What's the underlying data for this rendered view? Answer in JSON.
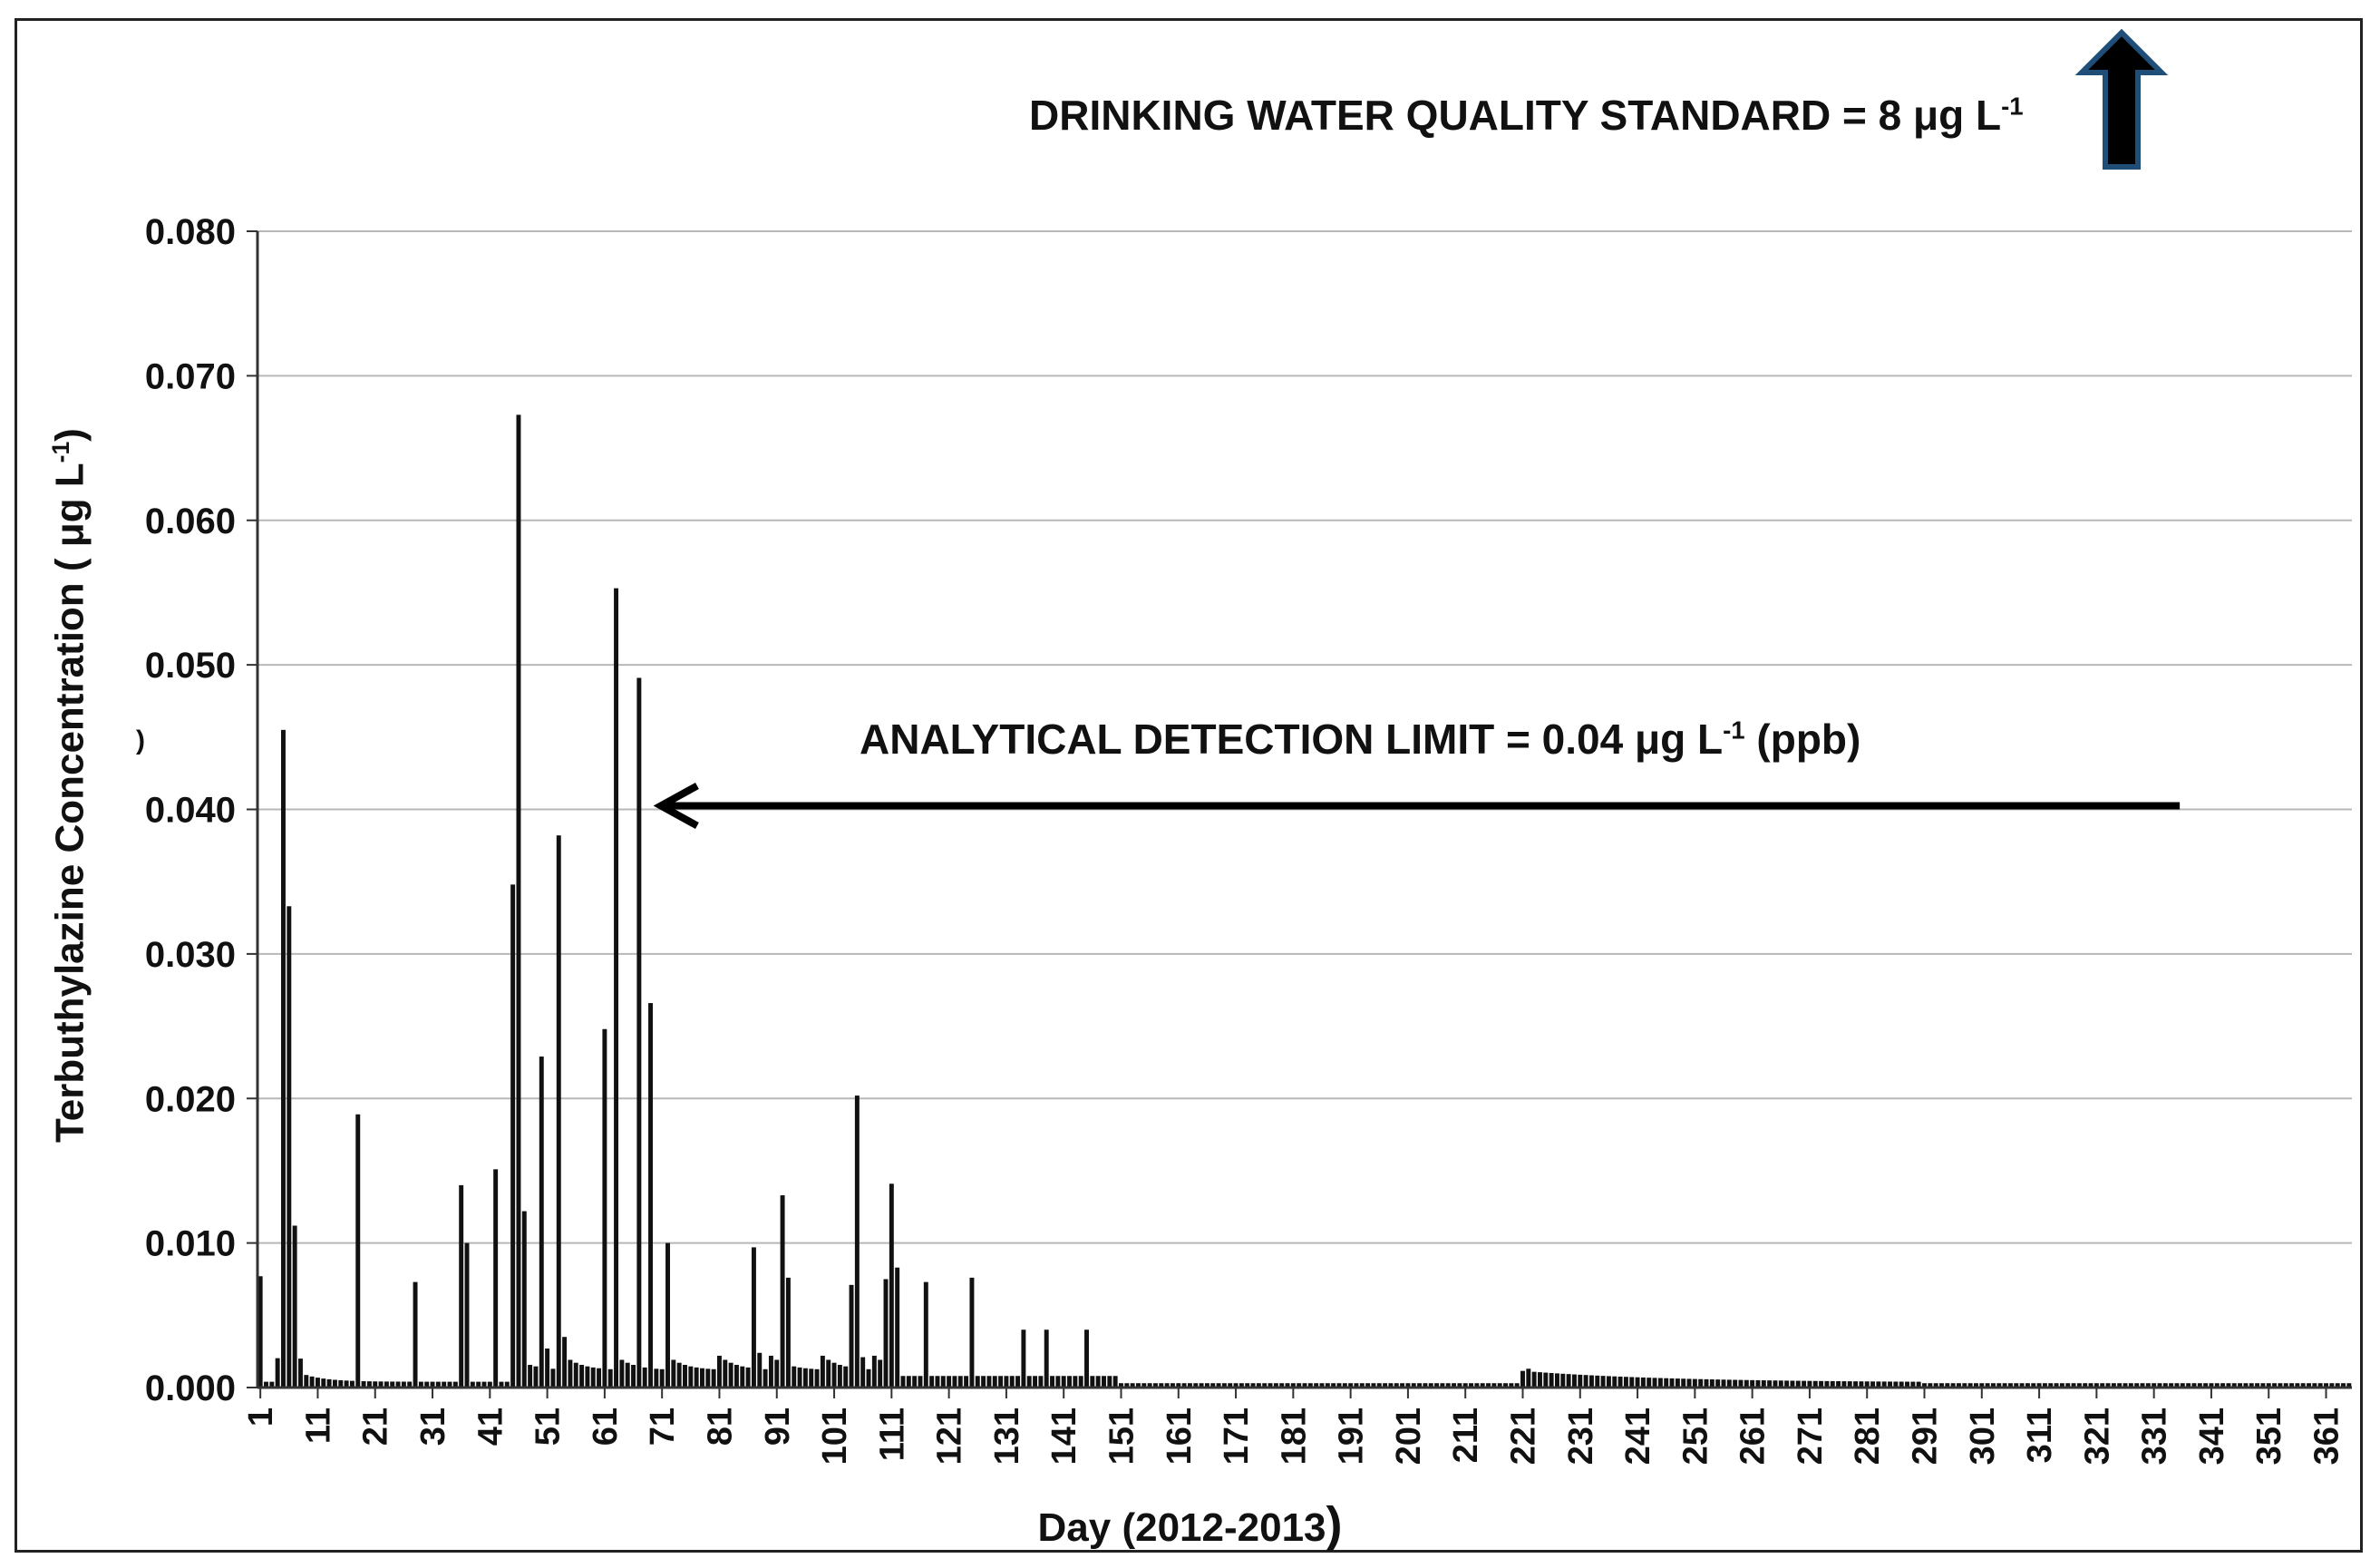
{
  "chart_data": {
    "type": "bar",
    "title": "",
    "xlabel_main": "Day (2012-2013",
    "xlabel_close": ")",
    "ylabel_main": "Terbuthylazine  Concentration ( μg L",
    "ylabel_sup": "-1",
    "ylabel_close": ")",
    "ylabel_stray": ")",
    "ylim": [
      0,
      0.08
    ],
    "xlim": [
      1,
      365
    ],
    "y_ticks": [
      "0.000",
      "0.010",
      "0.020",
      "0.030",
      "0.040",
      "0.050",
      "0.060",
      "0.070",
      "0.080"
    ],
    "x_ticks": [
      "1",
      "11",
      "21",
      "31",
      "41",
      "51",
      "61",
      "71",
      "81",
      "91",
      "101",
      "111",
      "121",
      "131",
      "141",
      "151",
      "161",
      "171",
      "181",
      "191",
      "201",
      "211",
      "221",
      "231",
      "241",
      "251",
      "261",
      "271",
      "281",
      "291",
      "301",
      "311",
      "321",
      "331",
      "341",
      "351",
      "361"
    ],
    "grid": true,
    "series": [
      {
        "name": "Terbuthylazine",
        "peaks": [
          {
            "day": 1,
            "value": 0.0077
          },
          {
            "day": 5,
            "value": 0.0455
          },
          {
            "day": 6,
            "value": 0.0333
          },
          {
            "day": 7,
            "value": 0.0112
          },
          {
            "day": 8,
            "value": 0.002
          },
          {
            "day": 18,
            "value": 0.0189
          },
          {
            "day": 28,
            "value": 0.0073
          },
          {
            "day": 36,
            "value": 0.014
          },
          {
            "day": 37,
            "value": 0.01
          },
          {
            "day": 42,
            "value": 0.0151
          },
          {
            "day": 45,
            "value": 0.0348
          },
          {
            "day": 46,
            "value": 0.0673
          },
          {
            "day": 47,
            "value": 0.0122
          },
          {
            "day": 50,
            "value": 0.0229
          },
          {
            "day": 51,
            "value": 0.0027
          },
          {
            "day": 53,
            "value": 0.0382
          },
          {
            "day": 54,
            "value": 0.0035
          },
          {
            "day": 61,
            "value": 0.0248
          },
          {
            "day": 63,
            "value": 0.0553
          },
          {
            "day": 67,
            "value": 0.0491
          },
          {
            "day": 69,
            "value": 0.0266
          },
          {
            "day": 72,
            "value": 0.01
          },
          {
            "day": 87,
            "value": 0.0097
          },
          {
            "day": 88,
            "value": 0.0024
          },
          {
            "day": 92,
            "value": 0.0133
          },
          {
            "day": 93,
            "value": 0.0076
          },
          {
            "day": 104,
            "value": 0.0071
          },
          {
            "day": 105,
            "value": 0.0202
          },
          {
            "day": 106,
            "value": 0.0021
          },
          {
            "day": 110,
            "value": 0.0075
          },
          {
            "day": 111,
            "value": 0.0141
          },
          {
            "day": 112,
            "value": 0.0083
          },
          {
            "day": 117,
            "value": 0.0073
          },
          {
            "day": 125,
            "value": 0.0076
          },
          {
            "day": 134,
            "value": 0.004
          },
          {
            "day": 138,
            "value": 0.004
          },
          {
            "day": 145,
            "value": 0.004
          },
          {
            "day": 222,
            "value": 0.0013
          }
        ]
      }
    ],
    "annotations": [
      {
        "text": "DRINKING WATER QUALITY STANDARD = 8 μg L",
        "sup": "-1"
      },
      {
        "text": "ANALYTICAL DETECTION LIMIT = 0.04  μg L",
        "sup": "-1",
        "suffix": " (ppb)",
        "arrow_to_day": 71,
        "arrow_from_day": 336,
        "value": 0.04
      }
    ],
    "colors": {
      "bars": "#111111",
      "grid": "#b8b8b8",
      "axis": "#333333",
      "up_arrow_fill": "#000000",
      "up_arrow_outline": "#1f4e79"
    }
  }
}
